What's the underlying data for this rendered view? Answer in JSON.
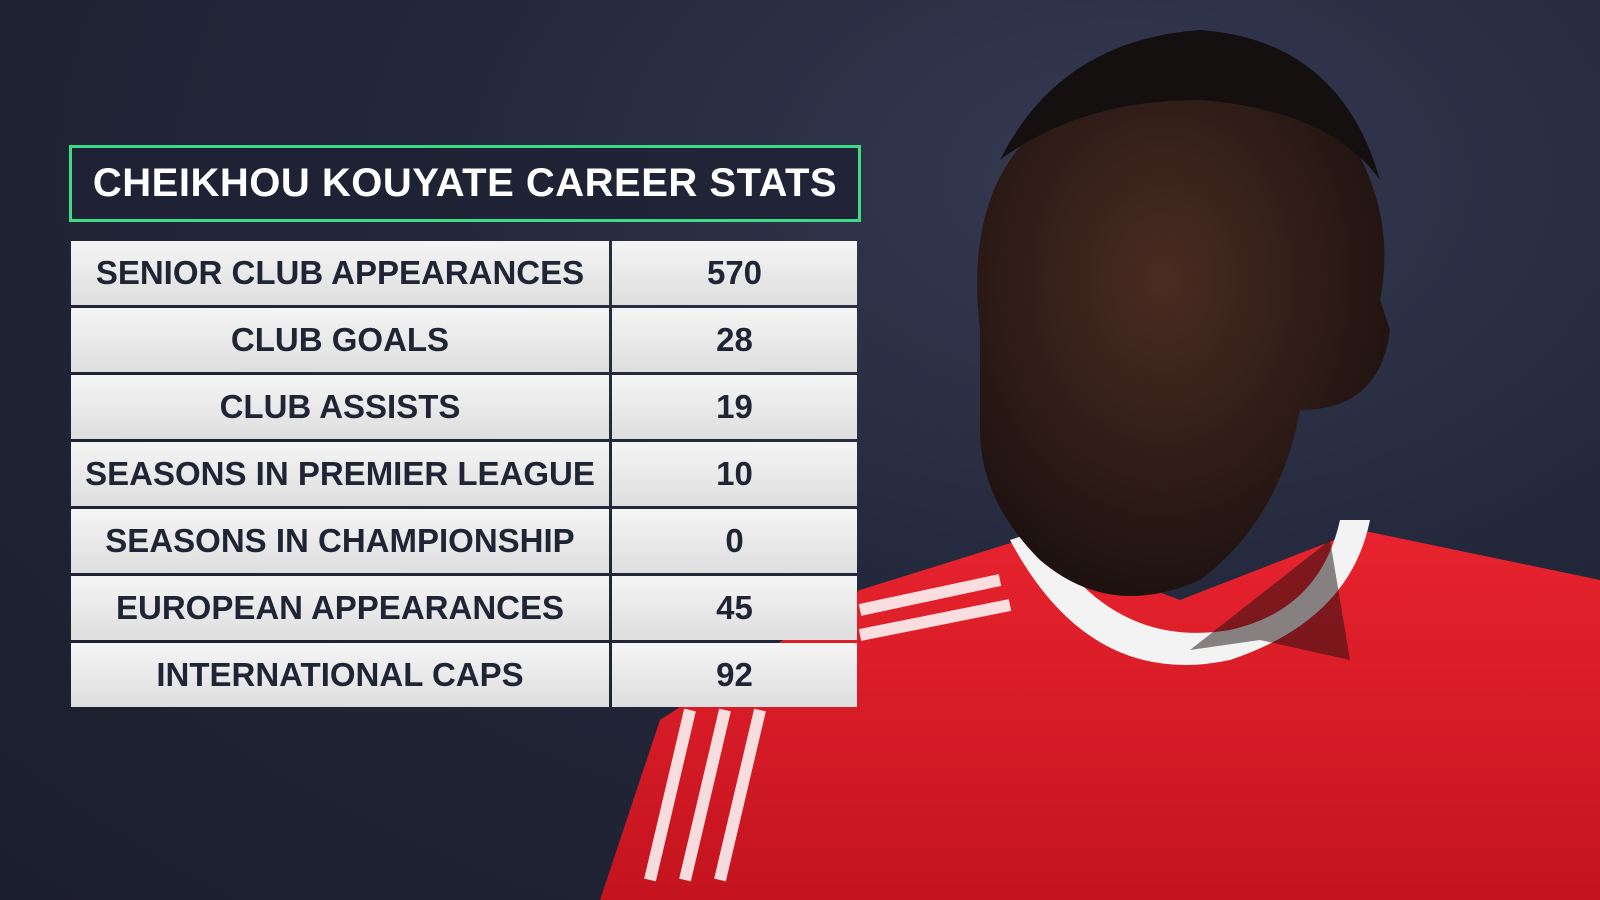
{
  "header": {
    "title": "CHEIKHOU KOUYATE CAREER STATS"
  },
  "table": {
    "rows": [
      [
        "SENIOR CLUB APPEARANCES",
        570
      ],
      [
        "CLUB GOALS",
        28
      ],
      [
        "CLUB ASSISTS",
        19
      ],
      [
        "SEASONS IN PREMIER LEAGUE",
        10
      ],
      [
        "SEASONS IN CHAMPIONSHIP",
        0
      ],
      [
        "EUROPEAN APPEARANCES",
        45
      ],
      [
        "INTERNATIONAL CAPS",
        92
      ]
    ]
  }
}
